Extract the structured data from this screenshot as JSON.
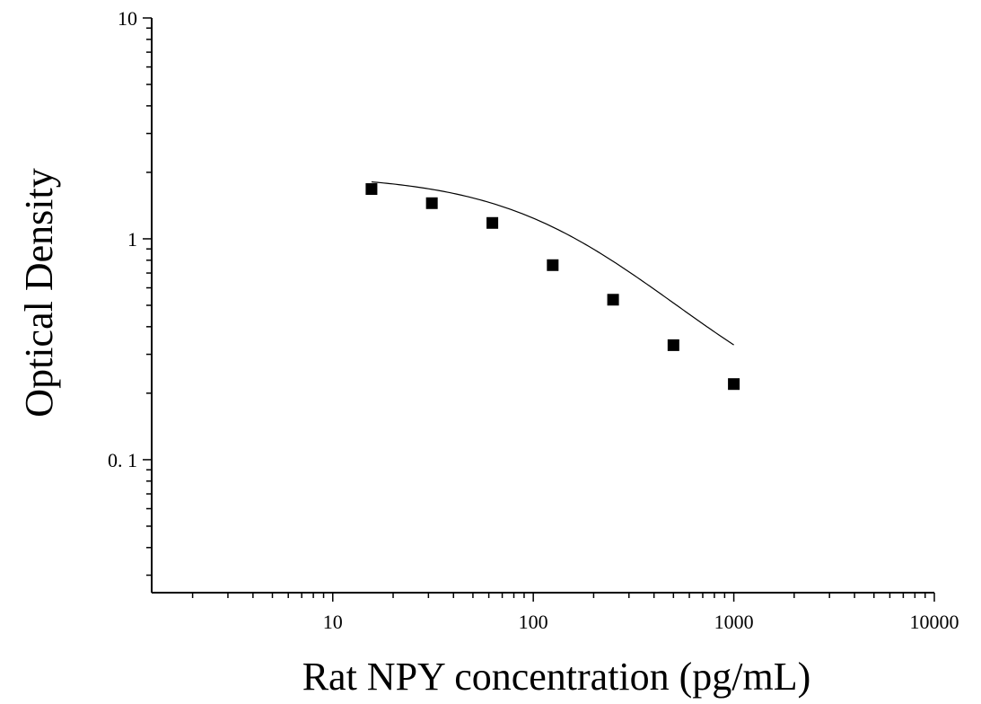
{
  "chart_data": {
    "type": "scatter",
    "title": "",
    "xlabel": "Rat NPY concentration (pg/mL)",
    "ylabel": "Optical Density",
    "xscale": "log",
    "yscale": "log",
    "xlim": [
      1.25,
      10000
    ],
    "ylim": [
      0.025,
      10
    ],
    "grid": false,
    "legend": "none",
    "x_ticks": [
      {
        "value": 10,
        "label": "10"
      },
      {
        "value": 100,
        "label": "100"
      },
      {
        "value": 1000,
        "label": "1000"
      },
      {
        "value": 10000,
        "label": "10000"
      }
    ],
    "y_ticks": [
      {
        "value": 10,
        "label": "10"
      },
      {
        "value": 1,
        "label": "1"
      },
      {
        "value": 0.1,
        "label": "0. 1"
      }
    ],
    "series": [
      {
        "marker": "square",
        "color": "#000000",
        "x": [
          15.6,
          31.2,
          62.5,
          125,
          250,
          500,
          1000
        ],
        "y": [
          1.68,
          1.45,
          1.18,
          0.76,
          0.53,
          0.33,
          0.22
        ]
      }
    ],
    "fit_curve": {
      "type": "4PL",
      "color": "#000000",
      "A": 1.95,
      "D": 0.13,
      "C": 150,
      "B": 1.1
    }
  }
}
